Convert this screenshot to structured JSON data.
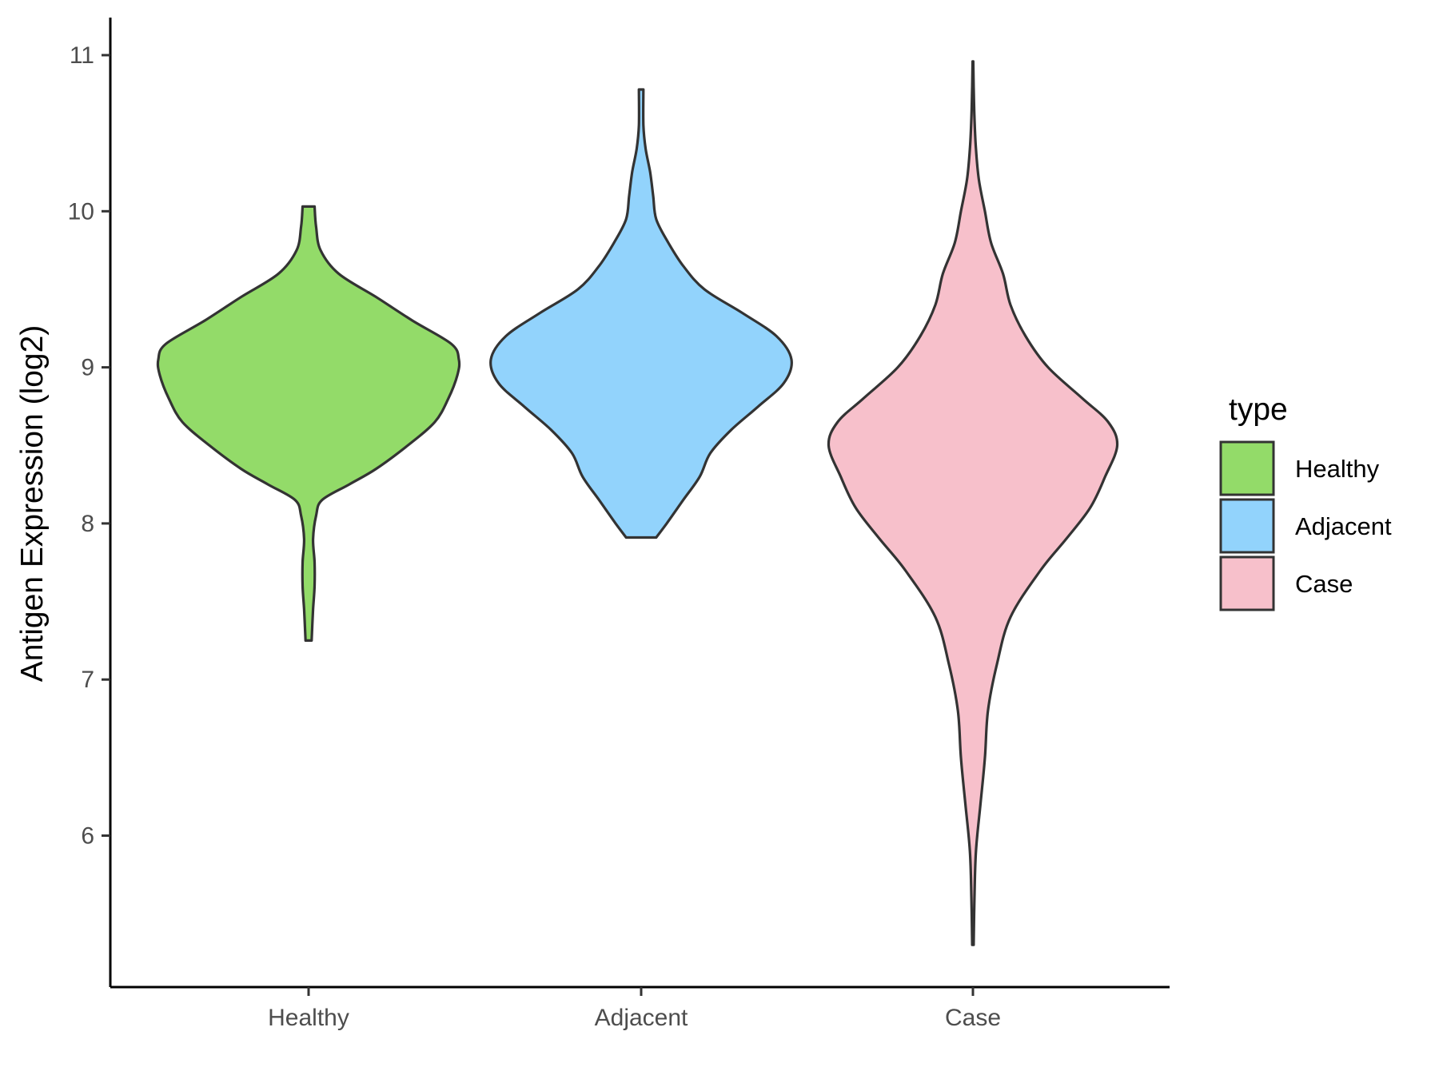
{
  "chart_data": {
    "type": "violin",
    "title": "",
    "xlabel": "",
    "ylabel": "Antigen Expression (log2)",
    "ylim": [
      5.1,
      11.25
    ],
    "yticks": [
      6,
      7,
      8,
      9,
      10,
      11
    ],
    "categories": [
      "Healthy",
      "Adjacent",
      "Case"
    ],
    "legend": {
      "title": "type",
      "position": "right",
      "entries": [
        "Healthy",
        "Adjacent",
        "Case"
      ]
    },
    "grid": false,
    "series": [
      {
        "category": "Healthy",
        "color": "#93DB69",
        "min": 7.25,
        "max": 10.03,
        "density_profile": [
          [
            7.25,
            0.02
          ],
          [
            7.45,
            0.03
          ],
          [
            7.6,
            0.04
          ],
          [
            7.75,
            0.04
          ],
          [
            7.9,
            0.03
          ],
          [
            8.05,
            0.05
          ],
          [
            8.15,
            0.09
          ],
          [
            8.25,
            0.27
          ],
          [
            8.35,
            0.45
          ],
          [
            8.5,
            0.66
          ],
          [
            8.65,
            0.84
          ],
          [
            8.8,
            0.93
          ],
          [
            8.95,
            0.99
          ],
          [
            9.05,
            1.0
          ],
          [
            9.15,
            0.95
          ],
          [
            9.3,
            0.69
          ],
          [
            9.45,
            0.45
          ],
          [
            9.6,
            0.2
          ],
          [
            9.75,
            0.08
          ],
          [
            9.9,
            0.05
          ],
          [
            10.03,
            0.04
          ]
        ]
      },
      {
        "category": "Adjacent",
        "color": "#92D3FC",
        "min": 7.91,
        "max": 10.78,
        "density_profile": [
          [
            7.91,
            0.1
          ],
          [
            8.0,
            0.17
          ],
          [
            8.15,
            0.28
          ],
          [
            8.3,
            0.39
          ],
          [
            8.45,
            0.46
          ],
          [
            8.6,
            0.6
          ],
          [
            8.75,
            0.78
          ],
          [
            8.9,
            0.95
          ],
          [
            9.05,
            1.0
          ],
          [
            9.2,
            0.9
          ],
          [
            9.35,
            0.67
          ],
          [
            9.5,
            0.42
          ],
          [
            9.65,
            0.28
          ],
          [
            9.8,
            0.18
          ],
          [
            9.95,
            0.1
          ],
          [
            10.1,
            0.08
          ],
          [
            10.25,
            0.06
          ],
          [
            10.4,
            0.03
          ],
          [
            10.55,
            0.015
          ],
          [
            10.78,
            0.015
          ]
        ]
      },
      {
        "category": "Case",
        "color": "#F7C0CB",
        "min": 5.3,
        "max": 10.96,
        "density_profile": [
          [
            5.3,
            0.005
          ],
          [
            5.6,
            0.01
          ],
          [
            5.9,
            0.02
          ],
          [
            6.2,
            0.05
          ],
          [
            6.5,
            0.08
          ],
          [
            6.8,
            0.1
          ],
          [
            7.1,
            0.16
          ],
          [
            7.4,
            0.25
          ],
          [
            7.7,
            0.45
          ],
          [
            7.9,
            0.62
          ],
          [
            8.1,
            0.78
          ],
          [
            8.3,
            0.88
          ],
          [
            8.5,
            0.96
          ],
          [
            8.65,
            0.9
          ],
          [
            8.8,
            0.73
          ],
          [
            9.0,
            0.5
          ],
          [
            9.2,
            0.35
          ],
          [
            9.4,
            0.25
          ],
          [
            9.6,
            0.2
          ],
          [
            9.8,
            0.12
          ],
          [
            10.0,
            0.08
          ],
          [
            10.2,
            0.04
          ],
          [
            10.4,
            0.02
          ],
          [
            10.6,
            0.01
          ],
          [
            10.8,
            0.005
          ],
          [
            10.96,
            0.002
          ]
        ]
      }
    ]
  }
}
